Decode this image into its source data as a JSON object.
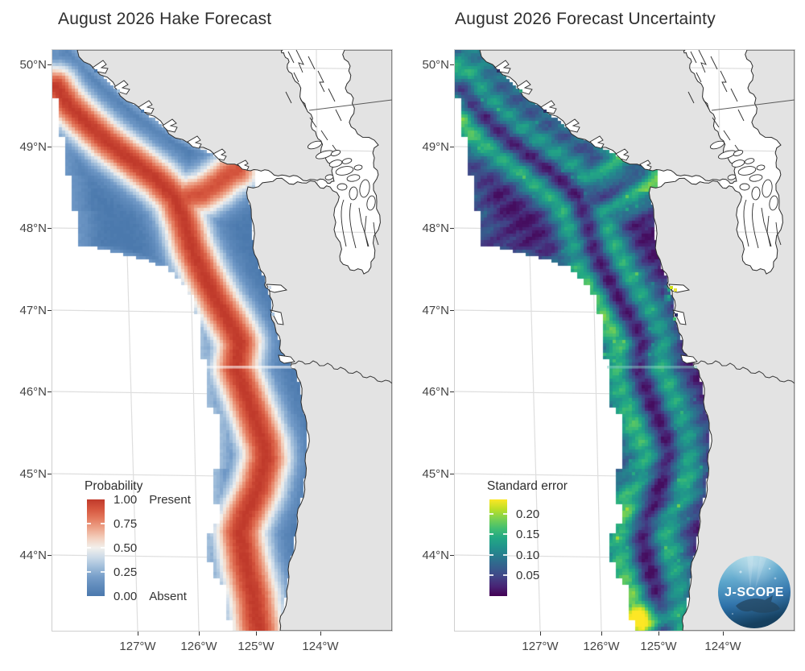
{
  "figure": {
    "panels": [
      {
        "id": "forecast",
        "title": "August 2026 Hake Forecast",
        "legend": {
          "title": "Probability",
          "entries": [
            {
              "value": "1.00",
              "note": "Present",
              "frac": 1.0
            },
            {
              "value": "0.75",
              "note": "",
              "frac": 0.75
            },
            {
              "value": "0.50",
              "note": "",
              "frac": 0.5
            },
            {
              "value": "0.25",
              "note": "",
              "frac": 0.25
            },
            {
              "value": "0.00",
              "note": "Absent",
              "frac": 0.0
            }
          ]
        }
      },
      {
        "id": "uncertainty",
        "title": "August 2026 Forecast Uncertainty",
        "legend": {
          "title": "Standard error",
          "entries": [
            {
              "value": "0.20",
              "note": "",
              "frac": 0.851
            },
            {
              "value": "0.15",
              "note": "",
              "frac": 0.638
            },
            {
              "value": "0.10",
              "note": "",
              "frac": 0.426
            },
            {
              "value": "0.05",
              "note": "",
              "frac": 0.213
            }
          ]
        }
      }
    ],
    "axes": {
      "x_labels": [
        "127°W",
        "126°W",
        "125°W",
        "124°W"
      ],
      "y_labels": [
        "50°N",
        "49°N",
        "48°N",
        "47°N",
        "46°N",
        "45°N",
        "44°N"
      ]
    },
    "logo": {
      "text": "J-SCOPE"
    },
    "colors": {
      "land": "#e3e3e3",
      "coastline": "#2b2b2b",
      "graticule": "#dedede",
      "prob_high": "#c03a2b",
      "prob_mid": "#f2f0ec",
      "prob_low": "#4b79ad",
      "viridis_low": "#440154",
      "viridis_mid": "#21918c",
      "viridis_high": "#fde725"
    }
  },
  "chart_data": [
    {
      "type": "heatmap",
      "title": "August 2026 Hake Forecast",
      "variable": "Probability of hake presence",
      "scale": {
        "min": 0,
        "max": 1,
        "ticks": [
          0,
          0.25,
          0.5,
          0.75,
          1
        ],
        "tick_labels": [
          "0.00 Absent",
          "0.25",
          "0.50",
          "0.75",
          "1.00 Present"
        ],
        "palette": "blue-white-red (RdBu reversed); red = present, blue = absent"
      },
      "x_axis": {
        "tick_labels": [
          "127°W",
          "126°W",
          "125°W",
          "124°W"
        ],
        "range_deg_west": [
          128.4,
          122.8
        ]
      },
      "y_axis": {
        "tick_labels": [
          "50°N",
          "49°N",
          "48°N",
          "47°N",
          "46°N",
          "45°N",
          "44°N"
        ],
        "range_deg_north": [
          43.1,
          50.2
        ]
      },
      "legend_position": "inside lower-left",
      "grid": "light gray graticule on white ocean, gray land",
      "high_probability_crest_lonlat": [
        [
          -128.3,
          49.7
        ],
        [
          -127.9,
          49.3
        ],
        [
          -127.1,
          48.8
        ],
        [
          -126.4,
          48.4
        ],
        [
          -126.1,
          47.8
        ],
        [
          -125.7,
          47.1
        ],
        [
          -125.3,
          46.6
        ],
        [
          -125.4,
          46.3
        ],
        [
          -125.1,
          45.7
        ],
        [
          -124.9,
          45.2
        ],
        [
          -125.2,
          44.5
        ],
        [
          -125.1,
          43.5
        ],
        [
          -125.0,
          43.1
        ]
      ],
      "crest_branch_to_strait_lonlat": [
        [
          -126.4,
          48.3
        ],
        [
          -125.9,
          48.5
        ],
        [
          -125.4,
          48.7
        ]
      ],
      "field_summary": "Probability near 1 along a sinuous shelf-break crest from NW Vancouver Island to the southern map edge with a branch toward the Strait of Juan de Fuca; probability near 0 (blue) both offshore and on the inner shelf; pale values along the western data boundary; thin pale seam across the domain near 46.3°N"
    },
    {
      "type": "heatmap",
      "title": "August 2026 Forecast Uncertainty",
      "variable": "Standard error",
      "scale": {
        "min": 0,
        "max": 0.235,
        "ticks": [
          0.05,
          0.1,
          0.15,
          0.2
        ],
        "palette": "viridis"
      },
      "x_axis": {
        "tick_labels": [
          "127°W",
          "126°W",
          "125°W",
          "124°W"
        ]
      },
      "y_axis": {
        "tick_labels": [
          "50°N",
          "49°N",
          "48°N",
          "47°N",
          "46°N",
          "45°N",
          "44°N"
        ]
      },
      "legend_position": "inside lower-left",
      "field_summary": "SE lowest (~0.02-0.05, dark purple) in crest core and far offshore; teal bands (~0.10-0.15) flanking the crest transition zones and near the NW Vancouver Island coast; bright green patch (~0.15-0.20) at the inshore southern corner near 43.3°N and yellow-green cells at estuary mouths (Grays Harbor)"
    }
  ]
}
